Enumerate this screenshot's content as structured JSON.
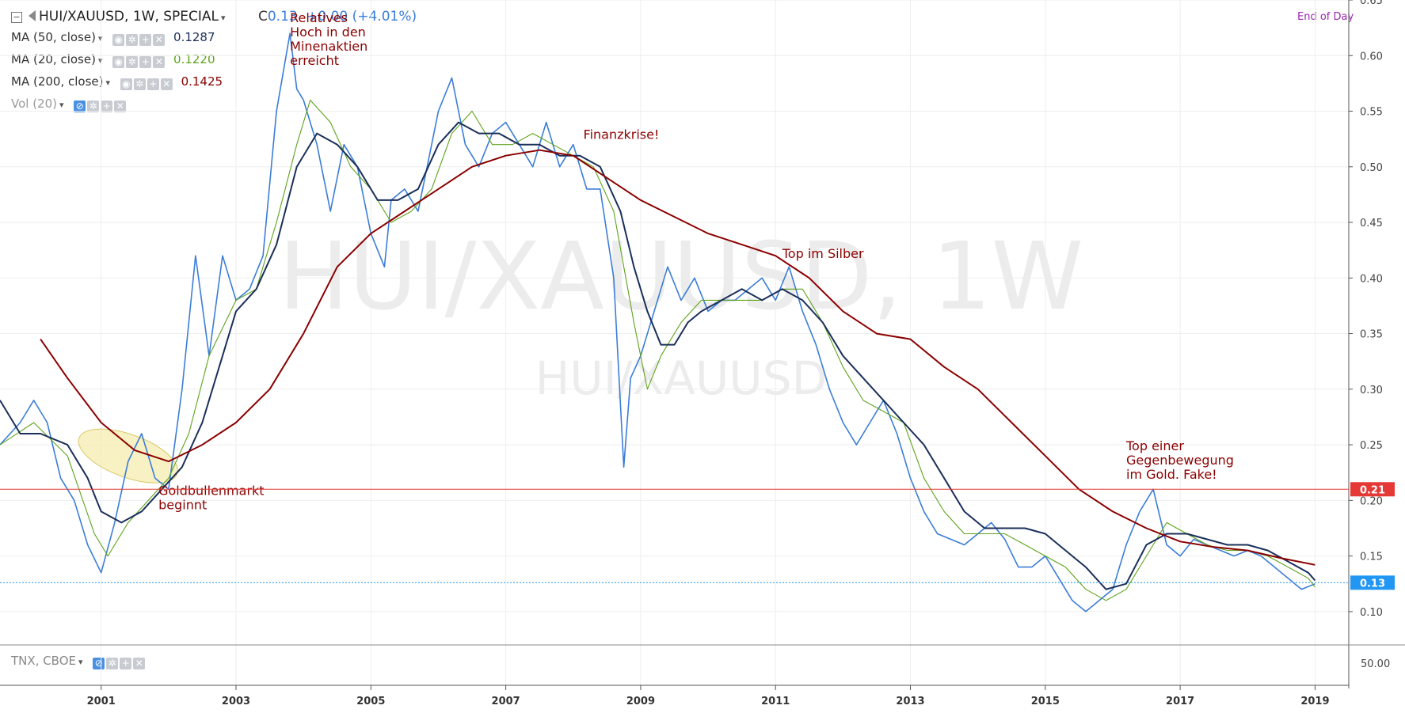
{
  "header": {
    "symbol_title": "HUI/XAUUSD, 1W, SPECIAL",
    "close_prefix": "C",
    "close_value": "0.13",
    "change_text": "+0.00 (+4.01%)",
    "mode": "End of Day"
  },
  "legend": [
    {
      "label": "MA (50, close)",
      "value": "0.1287",
      "color": "#1b2f5a"
    },
    {
      "label": "MA (20, close)",
      "value": "0.1220",
      "color": "#5ea31a"
    },
    {
      "label": "MA (200, close)",
      "value": "0.1425",
      "color": "#8b0000"
    },
    {
      "label": "Vol (20)",
      "value": "",
      "color": "#999999"
    }
  ],
  "lower_pane": {
    "label": "TNX, CBOE",
    "axis_label": "50.00"
  },
  "watermark": {
    "large": "HUI/XAUUSD, 1W",
    "small": "HUI/XAUUSD"
  },
  "price_badges": [
    {
      "label": "0.21",
      "value": 0.21,
      "color": "#e53935"
    },
    {
      "label": "0.13",
      "value": 0.126,
      "color": "#2196f3"
    }
  ],
  "chart_data": {
    "type": "line",
    "xlim": [
      1999.5,
      2019.5
    ],
    "ylim": [
      0.07,
      0.65
    ],
    "x_ticks": [
      2001,
      2003,
      2005,
      2007,
      2009,
      2011,
      2013,
      2015,
      2017,
      2019
    ],
    "x_tick_labels": [
      "2001",
      "2003",
      "2005",
      "2007",
      "2009",
      "2011",
      "2013",
      "2015",
      "2017",
      "2019"
    ],
    "y_ticks": [
      0.1,
      0.15,
      0.2,
      0.25,
      0.3,
      0.35,
      0.4,
      0.45,
      0.5,
      0.55,
      0.6,
      0.65
    ],
    "y_tick_labels": [
      "0.10",
      "0.15",
      "0.20",
      "0.25",
      "0.30",
      "0.35",
      "0.40",
      "0.45",
      "0.50",
      "0.55",
      "0.60",
      "0.65"
    ],
    "grid": true,
    "series": [
      {
        "name": "HUI/XAUUSD",
        "color": "#3b7dd8",
        "x": [
          1999.5,
          1999.8,
          2000.0,
          2000.2,
          2000.4,
          2000.6,
          2000.8,
          2001.0,
          2001.2,
          2001.4,
          2001.6,
          2001.8,
          2002.0,
          2002.2,
          2002.4,
          2002.6,
          2002.8,
          2003.0,
          2003.2,
          2003.4,
          2003.6,
          2003.8,
          2003.9,
          2004.0,
          2004.2,
          2004.4,
          2004.6,
          2004.8,
          2005.0,
          2005.2,
          2005.3,
          2005.5,
          2005.7,
          2005.9,
          2006.0,
          2006.2,
          2006.4,
          2006.6,
          2006.8,
          2007.0,
          2007.2,
          2007.4,
          2007.6,
          2007.8,
          2008.0,
          2008.2,
          2008.4,
          2008.6,
          2008.75,
          2008.85,
          2009.0,
          2009.2,
          2009.4,
          2009.6,
          2009.8,
          2010.0,
          2010.2,
          2010.4,
          2010.6,
          2010.8,
          2011.0,
          2011.2,
          2011.4,
          2011.6,
          2011.8,
          2012.0,
          2012.2,
          2012.4,
          2012.6,
          2012.8,
          2013.0,
          2013.2,
          2013.4,
          2013.6,
          2013.8,
          2014.0,
          2014.2,
          2014.4,
          2014.6,
          2014.8,
          2015.0,
          2015.2,
          2015.4,
          2015.6,
          2015.8,
          2016.0,
          2016.2,
          2016.4,
          2016.6,
          2016.8,
          2017.0,
          2017.2,
          2017.4,
          2017.6,
          2017.8,
          2018.0,
          2018.2,
          2018.4,
          2018.6,
          2018.8,
          2019.0
        ],
        "y": [
          0.25,
          0.27,
          0.29,
          0.27,
          0.22,
          0.2,
          0.16,
          0.135,
          0.18,
          0.235,
          0.26,
          0.22,
          0.21,
          0.3,
          0.42,
          0.33,
          0.42,
          0.38,
          0.39,
          0.42,
          0.55,
          0.62,
          0.57,
          0.56,
          0.52,
          0.46,
          0.52,
          0.5,
          0.44,
          0.41,
          0.47,
          0.48,
          0.46,
          0.52,
          0.55,
          0.58,
          0.52,
          0.5,
          0.53,
          0.54,
          0.52,
          0.5,
          0.54,
          0.5,
          0.52,
          0.48,
          0.48,
          0.4,
          0.23,
          0.31,
          0.33,
          0.37,
          0.41,
          0.38,
          0.4,
          0.37,
          0.38,
          0.38,
          0.39,
          0.4,
          0.38,
          0.41,
          0.37,
          0.34,
          0.3,
          0.27,
          0.25,
          0.27,
          0.29,
          0.26,
          0.22,
          0.19,
          0.17,
          0.165,
          0.16,
          0.17,
          0.18,
          0.165,
          0.14,
          0.14,
          0.15,
          0.13,
          0.11,
          0.1,
          0.11,
          0.12,
          0.16,
          0.19,
          0.21,
          0.16,
          0.15,
          0.165,
          0.16,
          0.155,
          0.15,
          0.155,
          0.15,
          0.14,
          0.13,
          0.12,
          0.125
        ]
      },
      {
        "name": "MA (20, close)",
        "color": "#5ea31a",
        "x": [
          1999.5,
          2000.0,
          2000.5,
          2000.9,
          2001.1,
          2001.4,
          2001.7,
          2002.0,
          2002.3,
          2002.6,
          2003.0,
          2003.3,
          2003.6,
          2003.9,
          2004.1,
          2004.4,
          2004.7,
          2005.0,
          2005.3,
          2005.6,
          2005.9,
          2006.2,
          2006.5,
          2006.8,
          2007.1,
          2007.4,
          2007.7,
          2008.0,
          2008.3,
          2008.6,
          2008.9,
          2009.1,
          2009.3,
          2009.6,
          2009.9,
          2010.2,
          2010.5,
          2010.8,
          2011.1,
          2011.4,
          2011.7,
          2012.0,
          2012.3,
          2012.6,
          2012.9,
          2013.2,
          2013.5,
          2013.8,
          2014.1,
          2014.4,
          2014.7,
          2015.0,
          2015.3,
          2015.6,
          2015.9,
          2016.2,
          2016.5,
          2016.8,
          2017.1,
          2017.4,
          2017.7,
          2018.0,
          2018.3,
          2018.6,
          2018.9,
          2019.0
        ],
        "y": [
          0.25,
          0.27,
          0.24,
          0.17,
          0.15,
          0.18,
          0.2,
          0.22,
          0.26,
          0.33,
          0.38,
          0.39,
          0.45,
          0.52,
          0.56,
          0.54,
          0.5,
          0.48,
          0.45,
          0.46,
          0.48,
          0.53,
          0.55,
          0.52,
          0.52,
          0.53,
          0.52,
          0.51,
          0.5,
          0.46,
          0.36,
          0.3,
          0.33,
          0.36,
          0.38,
          0.38,
          0.38,
          0.38,
          0.39,
          0.39,
          0.36,
          0.32,
          0.29,
          0.28,
          0.27,
          0.22,
          0.19,
          0.17,
          0.17,
          0.17,
          0.16,
          0.15,
          0.14,
          0.12,
          0.11,
          0.12,
          0.15,
          0.18,
          0.17,
          0.16,
          0.155,
          0.155,
          0.15,
          0.14,
          0.13,
          0.122
        ]
      },
      {
        "name": "MA (50, close)",
        "color": "#1b2f5a",
        "x": [
          1999.5,
          1999.8,
          2000.1,
          2000.5,
          2000.8,
          2001.0,
          2001.3,
          2001.6,
          2001.9,
          2002.2,
          2002.5,
          2002.8,
          2003.0,
          2003.3,
          2003.6,
          2003.9,
          2004.2,
          2004.5,
          2004.8,
          2005.1,
          2005.4,
          2005.7,
          2006.0,
          2006.3,
          2006.6,
          2006.9,
          2007.2,
          2007.5,
          2007.8,
          2008.1,
          2008.4,
          2008.7,
          2008.9,
          2009.1,
          2009.3,
          2009.5,
          2009.7,
          2009.9,
          2010.2,
          2010.5,
          2010.8,
          2011.1,
          2011.4,
          2011.7,
          2012.0,
          2012.3,
          2012.6,
          2012.9,
          2013.2,
          2013.5,
          2013.8,
          2014.1,
          2014.4,
          2014.7,
          2015.0,
          2015.3,
          2015.6,
          2015.9,
          2016.2,
          2016.5,
          2016.8,
          2017.1,
          2017.4,
          2017.7,
          2018.0,
          2018.3,
          2018.6,
          2018.9,
          2019.0
        ],
        "y": [
          0.29,
          0.26,
          0.26,
          0.25,
          0.22,
          0.19,
          0.18,
          0.19,
          0.21,
          0.23,
          0.27,
          0.33,
          0.37,
          0.39,
          0.43,
          0.5,
          0.53,
          0.52,
          0.5,
          0.47,
          0.47,
          0.48,
          0.52,
          0.54,
          0.53,
          0.53,
          0.52,
          0.52,
          0.51,
          0.51,
          0.5,
          0.46,
          0.41,
          0.37,
          0.34,
          0.34,
          0.36,
          0.37,
          0.38,
          0.39,
          0.38,
          0.39,
          0.38,
          0.36,
          0.33,
          0.31,
          0.29,
          0.27,
          0.25,
          0.22,
          0.19,
          0.175,
          0.175,
          0.175,
          0.17,
          0.155,
          0.14,
          0.12,
          0.125,
          0.16,
          0.17,
          0.17,
          0.165,
          0.16,
          0.16,
          0.155,
          0.145,
          0.135,
          0.128
        ]
      },
      {
        "name": "MA (200, close)",
        "color": "#8b0000",
        "x": [
          2000.1,
          2000.5,
          2001.0,
          2001.5,
          2002.0,
          2002.5,
          2003.0,
          2003.5,
          2004.0,
          2004.5,
          2005.0,
          2005.5,
          2006.0,
          2006.5,
          2007.0,
          2007.5,
          2008.0,
          2008.5,
          2009.0,
          2009.5,
          2010.0,
          2010.5,
          2011.0,
          2011.5,
          2012.0,
          2012.5,
          2013.0,
          2013.5,
          2014.0,
          2014.5,
          2015.0,
          2015.5,
          2016.0,
          2016.5,
          2017.0,
          2017.5,
          2018.0,
          2018.5,
          2019.0
        ],
        "y": [
          0.345,
          0.31,
          0.27,
          0.245,
          0.235,
          0.25,
          0.27,
          0.3,
          0.35,
          0.41,
          0.44,
          0.46,
          0.48,
          0.5,
          0.51,
          0.515,
          0.51,
          0.49,
          0.47,
          0.455,
          0.44,
          0.43,
          0.42,
          0.4,
          0.37,
          0.35,
          0.345,
          0.32,
          0.3,
          0.27,
          0.24,
          0.21,
          0.19,
          0.175,
          0.163,
          0.158,
          0.155,
          0.148,
          0.142
        ]
      }
    ],
    "annotations": [
      {
        "lines": [
          "Relatives",
          "Hoch in den",
          "Minenaktien",
          "erreicht"
        ],
        "x": 2003.8,
        "y": 0.63
      },
      {
        "lines": [
          "Finanzkrise!"
        ],
        "x": 2008.15,
        "y": 0.525
      },
      {
        "lines": [
          "Top im Silber"
        ],
        "x": 2011.1,
        "y": 0.418
      },
      {
        "lines": [
          "Goldbullenmarkt",
          "beginnt"
        ],
        "x": 2001.85,
        "y": 0.205
      },
      {
        "lines": [
          "Top einer",
          "Gegenbewegung",
          "im Gold. Fake!"
        ],
        "x": 2016.2,
        "y": 0.245
      }
    ],
    "highlight_ellipse": {
      "center_x": 2001.4,
      "center_y": 0.24,
      "label": ""
    }
  }
}
